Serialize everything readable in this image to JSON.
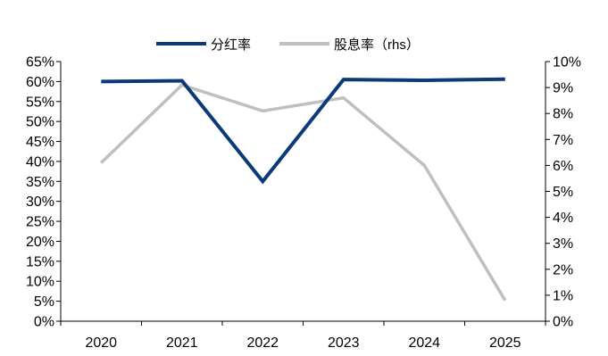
{
  "chart_data": {
    "type": "line",
    "categories": [
      "2020",
      "2021",
      "2022",
      "2023",
      "2024",
      "2025"
    ],
    "series": [
      {
        "name": "分红率",
        "axis": "left",
        "color": "#0b3a78",
        "values": [
          0.6,
          0.602,
          0.35,
          0.605,
          0.603,
          0.606
        ]
      },
      {
        "name": "股息率（rhs）",
        "axis": "right",
        "color": "#bfbfbf",
        "values": [
          0.061,
          0.091,
          0.081,
          0.086,
          0.06,
          0.008
        ]
      }
    ],
    "y_left": {
      "lim": [
        0,
        0.65
      ],
      "ticks": [
        0,
        0.05,
        0.1,
        0.15,
        0.2,
        0.25,
        0.3,
        0.35,
        0.4,
        0.45,
        0.5,
        0.55,
        0.6,
        0.65
      ],
      "tick_labels": [
        "0%",
        "5%",
        "10%",
        "15%",
        "20%",
        "25%",
        "30%",
        "35%",
        "40%",
        "45%",
        "50%",
        "55%",
        "60%",
        "65%"
      ]
    },
    "y_right": {
      "lim": [
        0,
        0.1
      ],
      "ticks": [
        0,
        0.01,
        0.02,
        0.03,
        0.04,
        0.05,
        0.06,
        0.07,
        0.08,
        0.09,
        0.1
      ],
      "tick_labels": [
        "0%",
        "1%",
        "2%",
        "3%",
        "4%",
        "5%",
        "6%",
        "7%",
        "8%",
        "9%",
        "10%"
      ]
    },
    "grid": false,
    "legend_position": "top-center"
  }
}
